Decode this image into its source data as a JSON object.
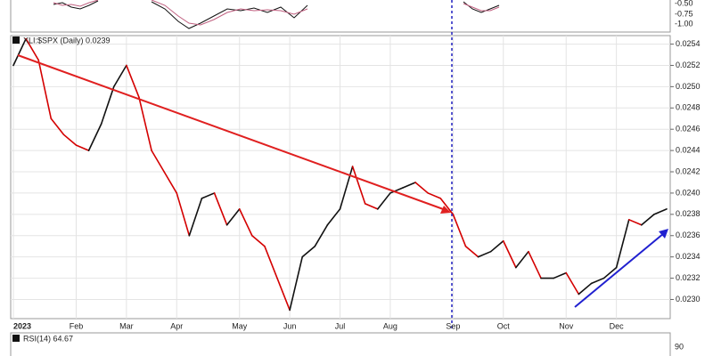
{
  "chart_data": {
    "type": "line",
    "title": "XLI:$SPX (Daily) 0.0239",
    "categories": [
      "2023",
      null,
      null,
      null,
      null,
      "Feb",
      null,
      null,
      null,
      "Mar",
      null,
      null,
      null,
      "Apr",
      null,
      null,
      null,
      null,
      "May",
      null,
      null,
      null,
      "Jun",
      null,
      null,
      null,
      "Jul",
      null,
      null,
      null,
      "Aug",
      null,
      null,
      null,
      null,
      "Sep",
      null,
      null,
      null,
      "Oct",
      null,
      null,
      null,
      null,
      "Nov",
      null,
      null,
      null,
      "Dec",
      null,
      null,
      null,
      null
    ],
    "series": [
      {
        "name": "XLI:$SPX",
        "color": "#d40000",
        "up_color": "#111111",
        "values": [
          0.0252,
          0.02545,
          0.02525,
          0.0247,
          0.02455,
          0.02445,
          0.0244,
          0.02465,
          0.025,
          0.0252,
          0.0249,
          0.0244,
          0.0242,
          0.024,
          0.0236,
          0.02395,
          0.024,
          0.0237,
          0.02385,
          0.0236,
          0.0235,
          0.0232,
          0.0229,
          0.0234,
          0.0235,
          0.0237,
          0.02385,
          0.02425,
          0.0239,
          0.02385,
          0.024,
          0.02405,
          0.0241,
          0.024,
          0.02395,
          0.0238,
          0.0235,
          0.0234,
          0.02345,
          0.02355,
          0.0233,
          0.02345,
          0.0232,
          0.0232,
          0.02325,
          0.02305,
          0.02315,
          0.0232,
          0.0233,
          0.02375,
          0.0237,
          0.0238,
          0.02385
        ]
      }
    ],
    "ylim": [
      0.02282,
      0.02548
    ],
    "yticks": [
      {
        "value": 0.023,
        "label": "0.0230"
      },
      {
        "value": 0.0232,
        "label": "0.0232"
      },
      {
        "value": 0.0234,
        "label": "0.0234"
      },
      {
        "value": 0.0236,
        "label": "0.0236"
      },
      {
        "value": 0.0238,
        "label": "0.0238"
      },
      {
        "value": 0.024,
        "label": "0.0240"
      },
      {
        "value": 0.0242,
        "label": "0.0242"
      },
      {
        "value": 0.0244,
        "label": "0.0244"
      },
      {
        "value": 0.0246,
        "label": "0.0246"
      },
      {
        "value": 0.0248,
        "label": "0.0248"
      },
      {
        "value": 0.025,
        "label": "0.0250"
      },
      {
        "value": 0.0252,
        "label": "0.0252"
      },
      {
        "value": 0.0254,
        "label": "0.0254"
      }
    ],
    "grid": true
  },
  "top_panel": {
    "ytick_labels": [
      "-0.50",
      "-0.75",
      "-1.00"
    ]
  },
  "rsi_panel": {
    "label": "RSI(14) 64.67",
    "ytick_label": "90"
  }
}
